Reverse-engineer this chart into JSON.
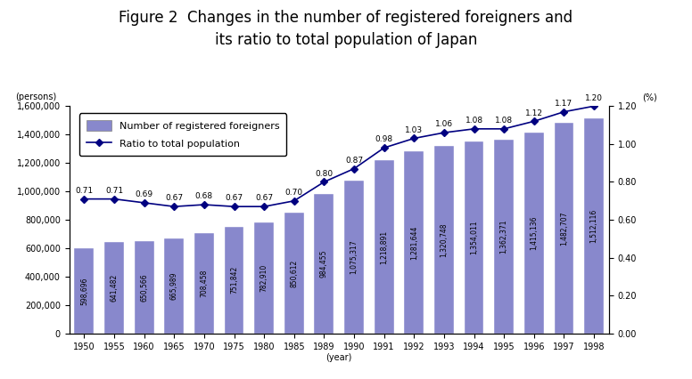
{
  "title_line1": "Figure 2  Changes in the number of registered foreigners and",
  "title_line2": "its ratio to total population of Japan",
  "years": [
    1950,
    1955,
    1960,
    1965,
    1970,
    1975,
    1980,
    1985,
    1989,
    1990,
    1991,
    1992,
    1993,
    1994,
    1995,
    1996,
    1997,
    1998
  ],
  "bar_values": [
    598696,
    641482,
    650566,
    665989,
    708458,
    751842,
    782910,
    850612,
    984455,
    1075317,
    1218891,
    1281644,
    1320748,
    1354011,
    1362371,
    1415136,
    1482707,
    1512116
  ],
  "ratio_values": [
    0.71,
    0.71,
    0.69,
    0.67,
    0.68,
    0.67,
    0.67,
    0.7,
    0.8,
    0.87,
    0.98,
    1.03,
    1.06,
    1.08,
    1.08,
    1.12,
    1.17,
    1.2
  ],
  "bar_color": "#8888cc",
  "line_color": "#000080",
  "marker_color": "#000080",
  "bar_labels": [
    "598,696",
    "641,482",
    "650,566",
    "665,989",
    "708,458",
    "751,842",
    "782,910",
    "850,612",
    "984,455",
    "1,075,317",
    "1,218,891",
    "1,281,644",
    "1,320,748",
    "1,354,011",
    "1,362,371",
    "1,415,136",
    "1,482,707",
    "1,512,116"
  ],
  "ratio_labels": [
    "0.71",
    "0.71",
    "0.69",
    "0.67",
    "0.68",
    "0.67",
    "0.67",
    "0.70",
    "0.80",
    "0.87",
    "0.98",
    "1.03",
    "1.06",
    "1.08",
    "1.08",
    "1.12",
    "1.17",
    "1.20"
  ],
  "ylim_left": [
    0,
    1600000
  ],
  "ylim_right": [
    0.0,
    1.2
  ],
  "ylabel_left": "(persons)",
  "ylabel_right": "(%)",
  "xlabel": "(year)",
  "legend_bar": "Number of registered foreigners",
  "legend_line": "Ratio to total population",
  "background_color": "#ffffff",
  "title_fontsize": 12,
  "label_fontsize": 7,
  "tick_fontsize": 8
}
